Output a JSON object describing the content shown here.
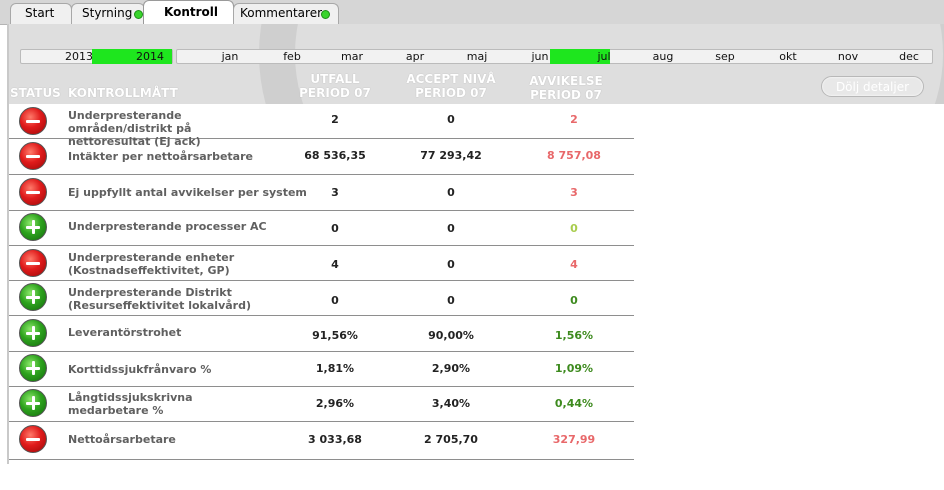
{
  "tabs": [
    {
      "label": "Start"
    },
    {
      "label": "Styrning"
    },
    {
      "label": "Kontroll"
    },
    {
      "label": "Kommentarer"
    }
  ],
  "years": [
    "2013",
    "2014"
  ],
  "months": [
    "jan",
    "feb",
    "mar",
    "apr",
    "maj",
    "jun",
    "jul",
    "aug",
    "sep",
    "okt",
    "nov",
    "dec"
  ],
  "headers": {
    "status": "STATUS",
    "measure": "KONTROLLMÅTT",
    "result_1": "UTFALL",
    "result_2": "PERIOD 07",
    "accept_1": "ACCEPT NIVÅ",
    "accept_2": "PERIOD 07",
    "dev_1": "AVVIKELSE",
    "dev_2": "PERIOD 07"
  },
  "hide_button": "Dölj detaljer",
  "colors": {
    "deviation_bad": "#e8686a",
    "deviation_good": "#3d8a1e",
    "deviation_zero_ok": "#a8cc4c",
    "selected": "#1ee61e"
  },
  "rows": [
    {
      "status": "bad",
      "icon": "minus-icon",
      "name_1": "Underpresterande områden/distrikt på",
      "name_2": "nettoresultat (Ej ack)",
      "result": "2",
      "accept": "0",
      "deviation": "2",
      "dev_color": "#e8686a"
    },
    {
      "status": "bad",
      "icon": "minus-icon",
      "name_1": "Intäkter per nettoårsarbetare",
      "name_2": "",
      "result": "68 536,35",
      "accept": "77 293,42",
      "deviation": "8 757,08",
      "dev_color": "#e8686a"
    },
    {
      "status": "bad",
      "icon": "minus-icon",
      "name_1": "Ej uppfyllt antal avvikelser per system",
      "name_2": "",
      "result": "3",
      "accept": "0",
      "deviation": "3",
      "dev_color": "#e8686a"
    },
    {
      "status": "good",
      "icon": "plus-icon",
      "name_1": "Underpresterande processer AC",
      "name_2": "",
      "result": "0",
      "accept": "0",
      "deviation": "0",
      "dev_color": "#a8cc4c"
    },
    {
      "status": "bad",
      "icon": "minus-icon",
      "name_1": "Underpresterande enheter",
      "name_2": "(Kostnadseffektivitet, GP)",
      "result": "4",
      "accept": "0",
      "deviation": "4",
      "dev_color": "#e8686a"
    },
    {
      "status": "good",
      "icon": "plus-icon",
      "name_1": "Underpresterande Distrikt",
      "name_2": "(Resurseffektivitet lokalvård)",
      "result": "0",
      "accept": "0",
      "deviation": "0",
      "dev_color": "#3d8a1e"
    },
    {
      "status": "good",
      "icon": "plus-icon",
      "name_1": "Leverantörstrohet",
      "name_2": "",
      "result": "91,56%",
      "accept": "90,00%",
      "deviation": "1,56%",
      "dev_color": "#3d8a1e"
    },
    {
      "status": "good",
      "icon": "plus-icon",
      "name_1": "Korttidssjukfrånvaro %",
      "name_2": "",
      "result": "1,81%",
      "accept": "2,90%",
      "deviation": "1,09%",
      "dev_color": "#3d8a1e"
    },
    {
      "status": "good",
      "icon": "plus-icon",
      "name_1": "Långtidssjukskrivna",
      "name_2": "medarbetare %",
      "result": "2,96%",
      "accept": "3,40%",
      "deviation": "0,44%",
      "dev_color": "#3d8a1e"
    },
    {
      "status": "bad",
      "icon": "minus-icon",
      "name_1": "Nettoårsarbetare",
      "name_2": "",
      "result": "3 033,68",
      "accept": "2 705,70",
      "deviation": "327,99",
      "dev_color": "#e8686a"
    }
  ]
}
